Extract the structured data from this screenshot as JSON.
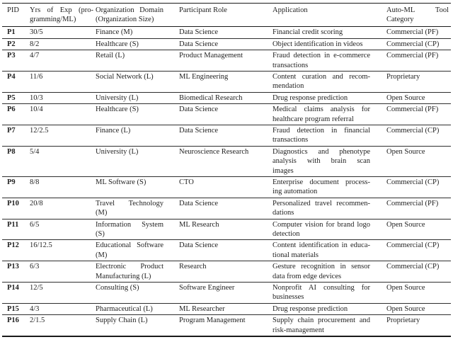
{
  "style": {
    "background": "#ffffff",
    "text_color": "#1f1f1f",
    "rule_color": "#1a1a1a"
  },
  "table": {
    "columns": [
      {
        "label": "PID"
      },
      {
        "label": [
          "Yrs of Exp (pro-",
          "gramming/ML)"
        ]
      },
      {
        "label": [
          "Organization Domain",
          "(Organization Size)"
        ]
      },
      {
        "label": "Participant Role"
      },
      {
        "label": "Application"
      },
      {
        "label": [
          "Auto-ML Tool",
          "Category"
        ]
      }
    ],
    "rows": [
      {
        "pid": "P1",
        "exp": "30/5",
        "org": "Finance (M)",
        "role": "Data Science",
        "app": "Financial credit scoring",
        "tool": "Commercial (PF)"
      },
      {
        "pid": "P2",
        "exp": "8/2",
        "org": "Healthcare (S)",
        "role": "Data Science",
        "app": "Object identification in videos",
        "tool": "Commercial (CP)"
      },
      {
        "pid": "P3",
        "exp": "4/7",
        "org": "Retail (L)",
        "role": "Product Management",
        "app": [
          "Fraud detection in e-commerce",
          "transactions"
        ],
        "tool": "Commercial (PF)"
      },
      {
        "pid": "P4",
        "exp": "11/6",
        "org": "Social Network (L)",
        "role": "ML Engineering",
        "app": [
          "Content curation and recom-",
          "mendation"
        ],
        "tool": "Proprietary"
      },
      {
        "pid": "P5",
        "exp": "10/3",
        "org": "University (L)",
        "role": "Biomedical Research",
        "app": "Drug response prediction",
        "tool": "Open Source"
      },
      {
        "pid": "P6",
        "exp": "10/4",
        "org": "Healthcare (S)",
        "role": "Data Science",
        "app": [
          "Medical claims analysis for",
          "healthcare program referral"
        ],
        "tool": "Commercial (PF)"
      },
      {
        "pid": "P7",
        "exp": "12/2.5",
        "org": "Finance (L)",
        "role": "Data Science",
        "app": [
          "Fraud detection in financial",
          "transactions"
        ],
        "tool": "Commercial (CP)"
      },
      {
        "pid": "P8",
        "exp": "5/4",
        "org": "University (L)",
        "role": "Neuroscience Research",
        "app": [
          "Diagnostics and phenotype",
          "analysis with brain scan",
          "images"
        ],
        "tool": "Open Source"
      },
      {
        "pid": "P9",
        "exp": "8/8",
        "org": "ML Software (S)",
        "role": "CTO",
        "app": [
          "Enterprise document process-",
          "ing automation"
        ],
        "tool": "Commercial (CP)"
      },
      {
        "pid": "P10",
        "exp": "20/8",
        "org": [
          "Travel Technology",
          "(M)"
        ],
        "role": "Data Science",
        "app": [
          "Personalized travel recommen-",
          "dations"
        ],
        "tool": "Commercial (PF)"
      },
      {
        "pid": "P11",
        "exp": "6/5",
        "org": [
          "Information System",
          "(S)"
        ],
        "role": "ML Research",
        "app": [
          "Computer vision for brand logo",
          "detection"
        ],
        "tool": "Open Source"
      },
      {
        "pid": "P12",
        "exp": "16/12.5",
        "org": [
          "Educational Software",
          "(M)"
        ],
        "role": "Data Science",
        "app": [
          "Content identification in educa-",
          "tional materials"
        ],
        "tool": "Commercial (CP)"
      },
      {
        "pid": "P13",
        "exp": "6/3",
        "org": [
          "Electronic Product",
          "Manufacturing (L)"
        ],
        "role": "Research",
        "app": [
          "Gesture recognition in sensor",
          "data from edge devices"
        ],
        "tool": "Commercial (CP)"
      },
      {
        "pid": "P14",
        "exp": "12/5",
        "org": "Consulting (S)",
        "role": "Software Engineer",
        "app": [
          "Nonprofit AI consulting for",
          "businesses"
        ],
        "tool": "Open Source"
      },
      {
        "pid": "P15",
        "exp": "4/3",
        "org": "Pharmaceutical (L)",
        "role": "ML Researcher",
        "app": "Drug response prediction",
        "tool": "Open Source"
      },
      {
        "pid": "P16",
        "exp": "2/1.5",
        "org": "Supply Chain (L)",
        "role": "Program Management",
        "app": [
          "Supply chain procurement and",
          "risk-management"
        ],
        "tool": "Proprietary"
      }
    ]
  }
}
